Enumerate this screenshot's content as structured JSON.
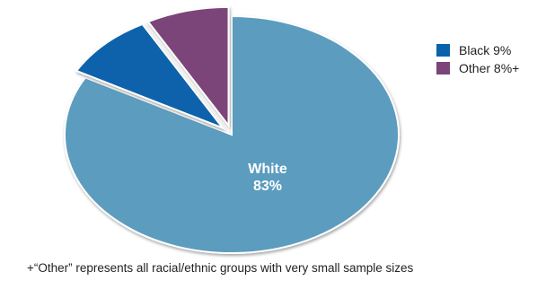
{
  "chart_data": {
    "type": "pie",
    "title": "",
    "slices": [
      {
        "label": "White",
        "value": 83,
        "value_label": "83%",
        "color": "#5b9cbf",
        "exploded": false,
        "legend": ""
      },
      {
        "label": "Black",
        "value": 9,
        "value_label": "9%",
        "color": "#0b62ab",
        "exploded": true,
        "legend": "Black 9%"
      },
      {
        "label": "Other",
        "value": 8,
        "value_label": "8%+",
        "color": "#7b4579",
        "exploded": true,
        "legend": "Other 8%+"
      }
    ],
    "legend_position": "top-right",
    "footnote": "+“Other” represents all racial/ethnic groups with very small sample sizes"
  }
}
